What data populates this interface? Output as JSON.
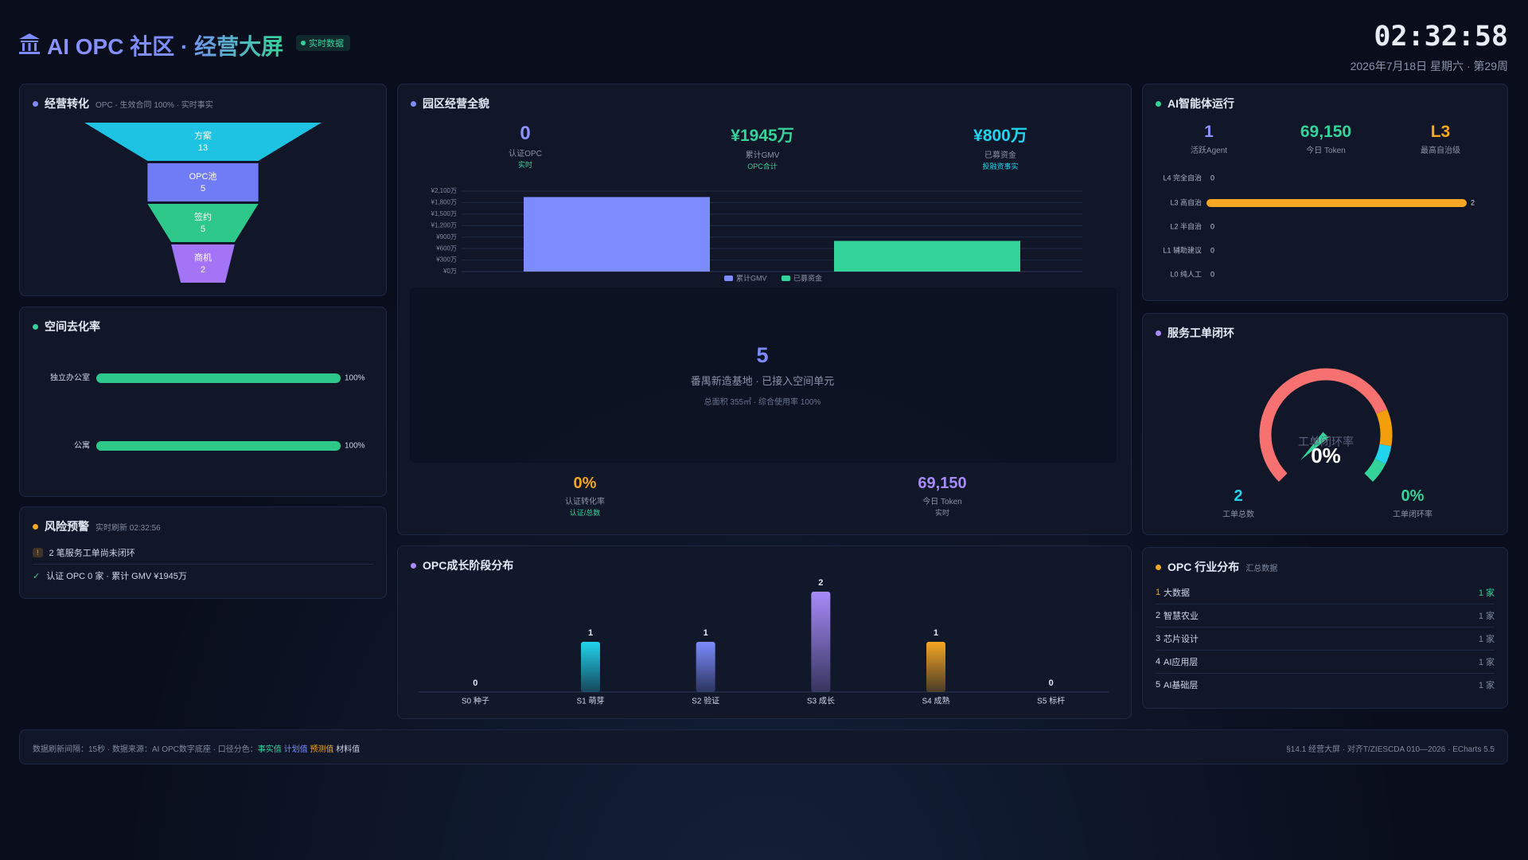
{
  "header": {
    "title": "AI OPC 社区 · 经营大屏",
    "badge": "实时数据",
    "clock": "02:32:58",
    "date": "2026年7月18日 星期六 · 第29周"
  },
  "panels": {
    "park": {
      "kpis": [
        {
          "value": "0",
          "label": "认证OPC",
          "note": "实时"
        },
        {
          "value": "¥1945万",
          "label": "累计GMV",
          "note": "OPC合计"
        },
        {
          "value": "¥800万",
          "label": "已募资金",
          "note": "投融资事实"
        }
      ],
      "space": {
        "value": "5",
        "label": "番禺新造基地 · 已接入空间单元",
        "note": "总面积 355㎡ · 综合使用率 100%"
      },
      "bottom_kpis": [
        {
          "value": "0%",
          "label": "认证转化率",
          "note": "认证/总数"
        },
        {
          "value": "69,150",
          "label": "今日 Token",
          "note": "实时"
        }
      ]
    },
    "agent": {
      "kpis": [
        {
          "value": "1",
          "label": "活跃Agent"
        },
        {
          "value": "69,150",
          "label": "今日 Token"
        },
        {
          "value": "L3",
          "label": "最高自治级"
        }
      ]
    },
    "service": {
      "kpis": [
        {
          "value": "2",
          "label": "工单总数"
        },
        {
          "value": "0%",
          "label": "工单闭环率"
        }
      ]
    },
    "risk": {
      "title": "风险预警",
      "subtitle": "实时刷新 02:32:56",
      "items": [
        {
          "icon": "!",
          "text": "2 笔服务工单尚未闭环"
        },
        {
          "icon": "✓",
          "text": "认证 OPC 0 家 · 累计 GMV ¥1945万"
        }
      ]
    },
    "industry": {
      "title": "OPC 行业分布",
      "subtitle": "汇总数据",
      "rows": [
        [
          "1",
          "大数据",
          "1 家"
        ],
        [
          "2",
          "智慧农业",
          "1 家"
        ],
        [
          "3",
          "芯片设计",
          "1 家"
        ],
        [
          "4",
          "AI应用层",
          "1 家"
        ],
        [
          "5",
          "AI基础层",
          "1 家"
        ]
      ]
    }
  },
  "chart_data": [
    {
      "type": "funnel",
      "title": "经营转化",
      "subtitle": "OPC - 生效合同 100% · 实时事实",
      "categories": [
        "方案",
        "OPC池",
        "签约",
        "商机"
      ],
      "values": [
        13,
        5,
        5,
        2
      ],
      "colors": [
        "#1ec3e4",
        "#6f7cf5",
        "#2ec98a",
        "#a374f5"
      ]
    },
    {
      "type": "bar",
      "title": "园区经营全貌",
      "categories": [
        null,
        null
      ],
      "series": [
        {
          "name": "累计GMV",
          "color": "#7c8cff",
          "values": [
            1945,
            null
          ]
        },
        {
          "name": "已募资金",
          "color": "#34d399",
          "values": [
            null,
            800
          ]
        }
      ],
      "ylim": [
        0,
        2100
      ],
      "yticks": [
        {
          "value": 0,
          "label": "¥0万"
        },
        {
          "value": 300,
          "label": "¥300万"
        },
        {
          "value": 600,
          "label": "¥600万"
        },
        {
          "value": 900,
          "label": "¥900万"
        },
        {
          "value": 1200,
          "label": "¥1,200万"
        },
        {
          "value": 1500,
          "label": "¥1,500万"
        },
        {
          "value": 1800,
          "label": "¥1,800万"
        },
        {
          "value": 2100,
          "label": "¥2,100万"
        }
      ],
      "grid": true,
      "legend": "bottom"
    },
    {
      "type": "bar",
      "horizontal": true,
      "title": "空间去化率",
      "categories": [
        "独立办公室",
        "公寓"
      ],
      "values": [
        100,
        100
      ],
      "value_labels": [
        "100%",
        "100%"
      ],
      "xlim": [
        0,
        100
      ],
      "color": "#2ec98a"
    },
    {
      "type": "bar",
      "horizontal": true,
      "title": "AI智能体运行",
      "categories": [
        "L4 完全自治",
        "L3 高自治",
        "L2 半自治",
        "L1 辅助建议",
        "L0 纯人工"
      ],
      "values": [
        0,
        2,
        0,
        0,
        0
      ],
      "xlim": [
        0,
        2
      ],
      "color": "#f5a623"
    },
    {
      "type": "gauge",
      "title": "服务工单闭环",
      "name": "工单闭环率",
      "values": [
        0
      ],
      "value_labels": [
        "0%"
      ],
      "ylim": [
        0,
        100
      ]
    },
    {
      "type": "bar",
      "title": "OPC成长阶段分布",
      "categories": [
        "S0 种子",
        "S1 萌芽",
        "S2 验证",
        "S3 成长",
        "S4 成熟",
        "S5 标杆"
      ],
      "values": [
        0,
        1,
        1,
        2,
        1,
        0
      ],
      "colors": [
        "#7c8cff",
        "#22d3ee",
        "#7c8cff",
        "#a78bfa",
        "#f5a623",
        "#7c8cff"
      ],
      "ylim": [
        0,
        2
      ]
    }
  ],
  "footer": {
    "left": "数据刷新间隔：15秒 · 数据来源：AI OPC数字底座 · 口径分色：",
    "legend": [
      "事实值",
      "计划值",
      "预测值",
      "材料值"
    ],
    "right": "§14.1 经营大屏 · 对齐T/ZIESCDA 010—2026 · ECharts 5.5"
  }
}
